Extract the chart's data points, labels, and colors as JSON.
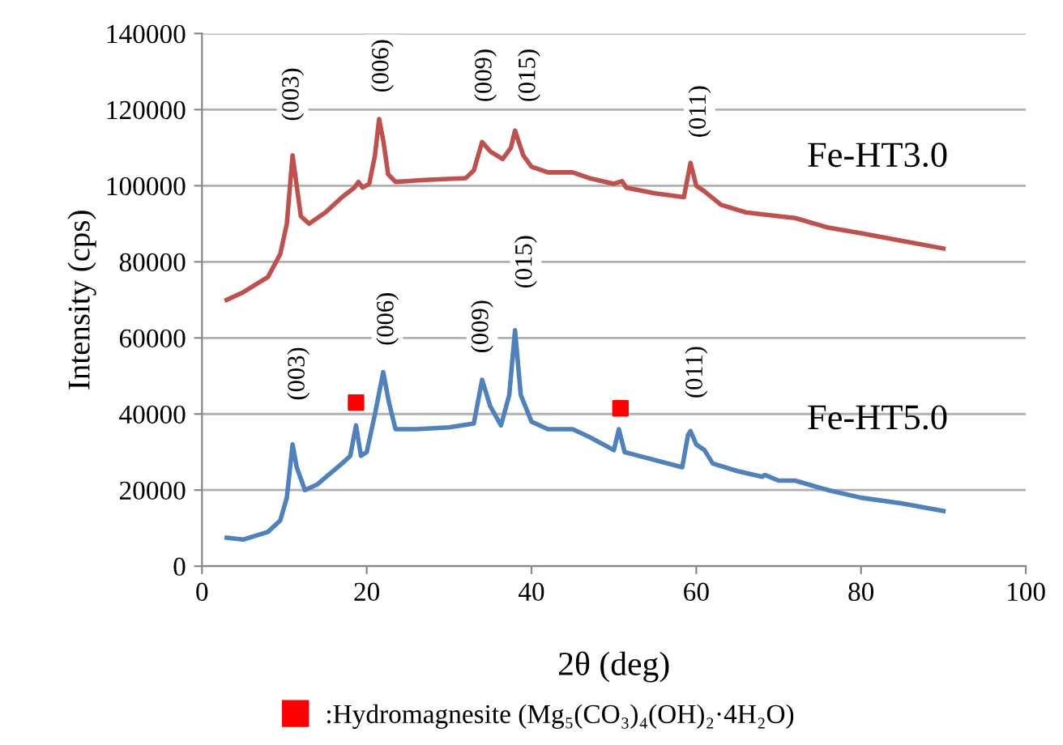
{
  "chart_data": {
    "type": "line",
    "xlabel": "2θ (deg)",
    "ylabel": "Intensity (cps)",
    "xlim": [
      0,
      100
    ],
    "xticks": [
      0,
      20,
      40,
      60,
      80,
      100
    ],
    "ylim": [
      0,
      140000
    ],
    "yticks": [
      0,
      20000,
      40000,
      60000,
      80000,
      100000,
      120000,
      140000
    ],
    "grid": "y",
    "legend": "bottom",
    "marker": "none",
    "series": [
      {
        "name": "Fe-HT3.0",
        "color": "#c0504d",
        "x": [
          3,
          5,
          8,
          9.5,
          10.3,
          11,
          11.5,
          12,
          13,
          15,
          17,
          18.5,
          19,
          19.5,
          20.3,
          21,
          21.5,
          22,
          22.6,
          23.5,
          27,
          32,
          33,
          34,
          35,
          36.5,
          37.5,
          38,
          39,
          40,
          42,
          45,
          47,
          50,
          51,
          51.5,
          55,
          58.5,
          59.3,
          60,
          61,
          63,
          66,
          70,
          72,
          76,
          80,
          85,
          90
        ],
        "values": [
          70000,
          72000,
          76000,
          82000,
          90000,
          108000,
          100000,
          92000,
          90000,
          93000,
          97000,
          99500,
          101000,
          99500,
          100500,
          108000,
          117500,
          112000,
          103000,
          101000,
          101500,
          102000,
          104000,
          111500,
          109000,
          107000,
          110000,
          114500,
          108000,
          105000,
          103500,
          103500,
          102000,
          100500,
          101200,
          99500,
          98000,
          97000,
          106000,
          100000,
          98500,
          95000,
          93000,
          92000,
          91500,
          89000,
          87500,
          85500,
          83500
        ]
      },
      {
        "name": "Fe-HT5.0",
        "color": "#4f81bd",
        "x": [
          3,
          5,
          8,
          9.5,
          10.3,
          11,
          11.5,
          12.5,
          14,
          17,
          18,
          18.7,
          19.3,
          20,
          21,
          22,
          22.7,
          23.5,
          26,
          30,
          33,
          34,
          35,
          36.3,
          37.3,
          38,
          38.7,
          40,
          42,
          45,
          47,
          50,
          50.6,
          51.3,
          53,
          58.3,
          59,
          59.3,
          60,
          61,
          62,
          65,
          68,
          68.3,
          70,
          72,
          76,
          80,
          85,
          90
        ],
        "values": [
          7500,
          7000,
          9000,
          12000,
          18000,
          32000,
          26000,
          20000,
          21500,
          27000,
          29000,
          37000,
          29000,
          30000,
          40000,
          51000,
          43000,
          36000,
          36000,
          36500,
          37500,
          49000,
          42000,
          37000,
          45000,
          62000,
          45000,
          38000,
          36000,
          36000,
          34000,
          30500,
          36000,
          30000,
          29000,
          26000,
          34500,
          35500,
          32000,
          30500,
          27000,
          25000,
          23500,
          24000,
          22500,
          22500,
          20000,
          18000,
          16500,
          14500
        ]
      },
      {
        "name": ":Hydromagnesite (Mg₅(CO₃)₄(OH)₂·4H₂O)",
        "type": "scatter",
        "marker": "square",
        "color": "#ff0000",
        "x": [
          18.7,
          50.8
        ],
        "values": [
          43000,
          41500
        ]
      }
    ],
    "annotations": [
      {
        "text": "(003)",
        "x": 11,
        "y": 124000
      },
      {
        "text": "(006)",
        "x": 21.9,
        "y": 131500
      },
      {
        "text": "(009)",
        "x": 34.4,
        "y": 129000
      },
      {
        "text": "(015)",
        "x": 39.7,
        "y": 129000
      },
      {
        "text": "(011)",
        "x": 60.4,
        "y": 119500
      },
      {
        "text": "(003)",
        "x": 11.7,
        "y": 50600
      },
      {
        "text": "(006)",
        "x": 22.5,
        "y": 65000
      },
      {
        "text": "(009)",
        "x": 34,
        "y": 63000
      },
      {
        "text": "(015)",
        "x": 39.3,
        "y": 80000
      },
      {
        "text": "(011)",
        "x": 60,
        "y": 51000
      }
    ]
  }
}
